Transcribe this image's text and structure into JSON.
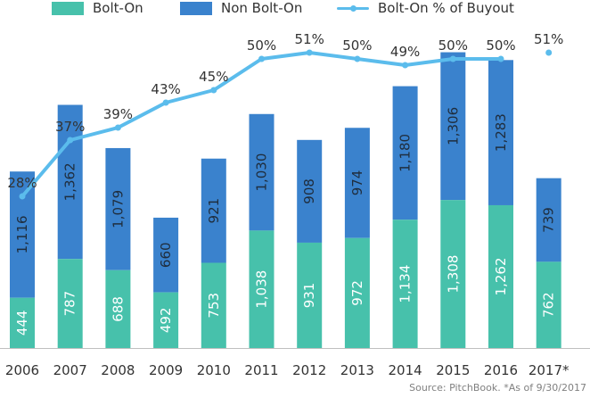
{
  "legend": {
    "bolt_on": "Bolt-On",
    "non_bolt_on": "Non Bolt-On",
    "pct": "Bolt-On % of Buyout"
  },
  "source": "Source: PitchBook. *As of 9/30/2017",
  "colors": {
    "bolt_on": "#47c1ab",
    "non_bolt_on": "#3a82cd",
    "pct_line": "#5bbcec"
  },
  "chart_data": {
    "type": "bar",
    "stacked": true,
    "categories": [
      "2006",
      "2007",
      "2008",
      "2009",
      "2010",
      "2011",
      "2012",
      "2013",
      "2014",
      "2015",
      "2016",
      "2017*"
    ],
    "series": [
      {
        "name": "Bolt-On",
        "values": [
          444,
          787,
          688,
          492,
          753,
          1038,
          931,
          972,
          1134,
          1308,
          1262,
          762
        ]
      },
      {
        "name": "Non Bolt-On",
        "values": [
          1116,
          1362,
          1079,
          660,
          921,
          1030,
          908,
          974,
          1180,
          1306,
          1283,
          739
        ]
      }
    ],
    "line_series": {
      "name": "Bolt-On % of Buyout",
      "values": [
        28,
        37,
        39,
        43,
        45,
        50,
        51,
        50,
        49,
        50,
        50,
        51
      ],
      "labels": [
        "28%",
        "37%",
        "39%",
        "43%",
        "45%",
        "50%",
        "51%",
        "50%",
        "49%",
        "50%",
        "50%",
        "51%"
      ],
      "connected_through_index": 10
    },
    "ylim": [
      0,
      2614
    ],
    "legend_position": "top",
    "grid": false
  }
}
